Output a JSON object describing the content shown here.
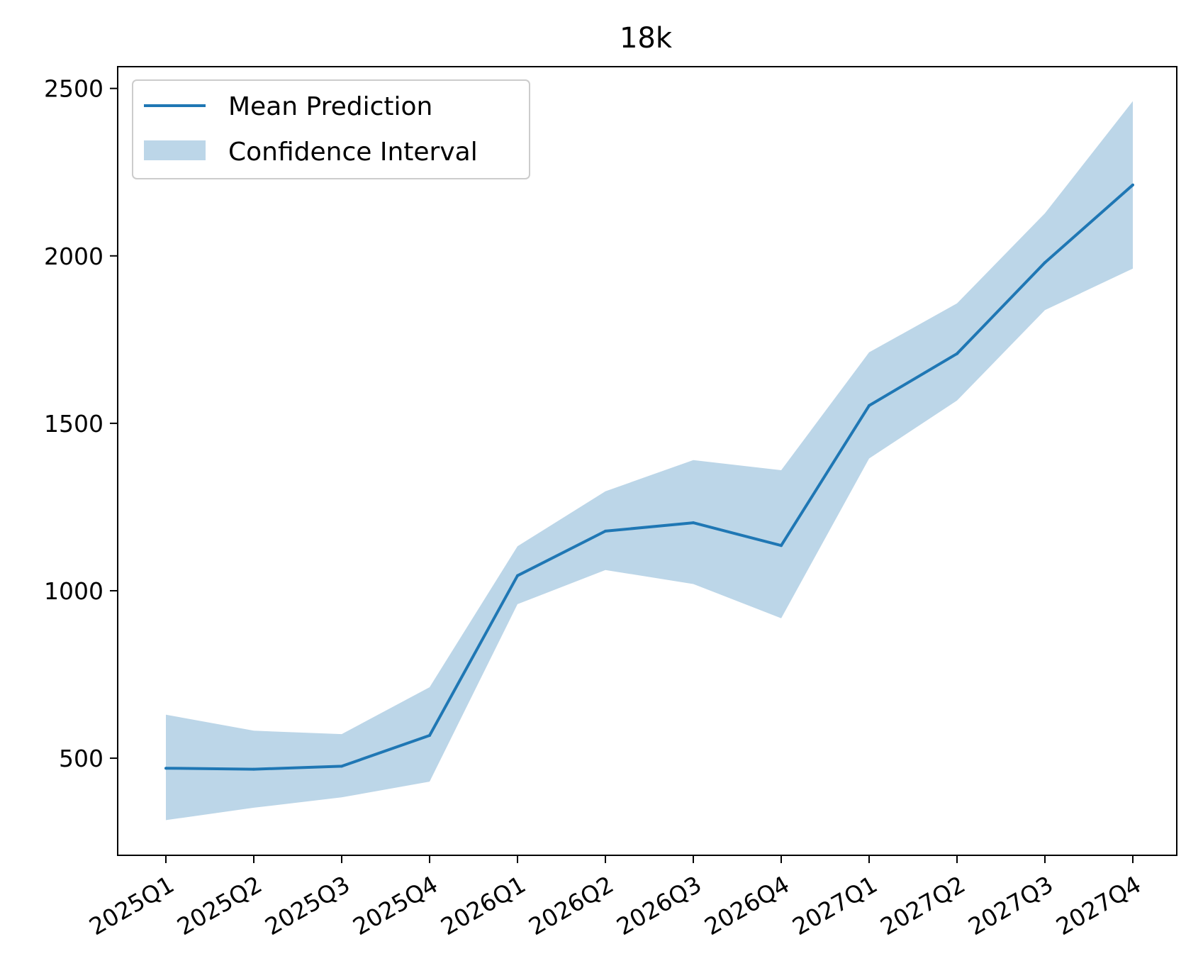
{
  "chart_data": {
    "type": "line",
    "title": "18k",
    "xlabel": "",
    "ylabel": "",
    "categories": [
      "2025Q1",
      "2025Q2",
      "2025Q3",
      "2025Q4",
      "2026Q1",
      "2026Q2",
      "2026Q3",
      "2026Q4",
      "2027Q1",
      "2027Q2",
      "2027Q3",
      "2027Q4"
    ],
    "series": [
      {
        "name": "Mean Prediction",
        "values": [
          470,
          467,
          476,
          568,
          1045,
          1178,
          1203,
          1135,
          1553,
          1708,
          1980,
          2212
        ]
      }
    ],
    "interval": {
      "name": "Confidence Interval",
      "lower": [
        315,
        352,
        383,
        430,
        960,
        1062,
        1020,
        918,
        1395,
        1568,
        1838,
        1962
      ],
      "upper": [
        630,
        582,
        572,
        712,
        1133,
        1297,
        1390,
        1360,
        1712,
        1858,
        2127,
        2462
      ]
    },
    "yticks": [
      500,
      1000,
      1500,
      2000,
      2500
    ],
    "ylim": [
      210,
      2565
    ],
    "grid": false,
    "legend_position": "upper-left",
    "colors": {
      "line": "#1f77b4",
      "band": "#bcd6e8"
    }
  }
}
